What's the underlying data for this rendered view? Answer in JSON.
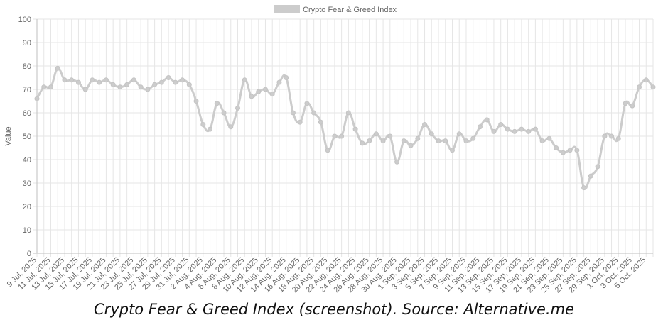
{
  "chart_data": {
    "type": "line",
    "title": "",
    "xlabel": "",
    "ylabel": "Value",
    "ylim": [
      0,
      100
    ],
    "yticks": [
      0,
      10,
      20,
      30,
      40,
      50,
      60,
      70,
      80,
      90,
      100
    ],
    "grid": true,
    "legend": "top-center",
    "x_tick_labels": [
      "9 Jul, 2025",
      "11 Jul, 2025",
      "13 Jul, 2025",
      "15 Jul, 2025",
      "17 Jul, 2025",
      "19 Jul, 2025",
      "21 Jul, 2025",
      "23 Jul, 2025",
      "25 Jul, 2025",
      "27 Jul, 2025",
      "29 Jul, 2025",
      "31 Jul, 2025",
      "2 Aug, 2025",
      "4 Aug, 2025",
      "6 Aug, 2025",
      "8 Aug, 2025",
      "10 Aug, 2025",
      "12 Aug, 2025",
      "14 Aug, 2025",
      "16 Aug, 2025",
      "18 Aug, 2025",
      "20 Aug, 2025",
      "22 Aug, 2025",
      "24 Aug, 2025",
      "26 Aug, 2025",
      "28 Aug, 2025",
      "30 Aug, 2025",
      "1 Sep, 2025",
      "3 Sep, 2025",
      "5 Sep, 2025",
      "7 Sep, 2025",
      "9 Sep, 2025",
      "11 Sep, 2025",
      "13 Sep, 2025",
      "15 Sep, 2025",
      "17 Sep, 2025",
      "19 Sep, 2025",
      "21 Sep, 2025",
      "23 Sep, 2025",
      "25 Sep, 2025",
      "27 Sep, 2025",
      "29 Sep, 2025",
      "1 Oct, 2025",
      "3 Oct, 2025",
      "5 Oct, 2025"
    ],
    "series": [
      {
        "name": "Crypto Fear & Greed Index",
        "color": "#cccccc",
        "x_start": "2025-07-09",
        "values": [
          66,
          71,
          71,
          79,
          74,
          74,
          73,
          70,
          74,
          73,
          74,
          72,
          71,
          72,
          74,
          71,
          70,
          72,
          73,
          75,
          73,
          74,
          72,
          65,
          55,
          53,
          64,
          60,
          54,
          62,
          74,
          67,
          69,
          70,
          68,
          73,
          75,
          60,
          56,
          64,
          60,
          56,
          44,
          50,
          50,
          60,
          53,
          47,
          48,
          51,
          48,
          50,
          39,
          48,
          46,
          49,
          55,
          51,
          48,
          48,
          44,
          51,
          48,
          49,
          54,
          57,
          52,
          55,
          53,
          52,
          53,
          52,
          53,
          48,
          49,
          45,
          43,
          44,
          44,
          28,
          33,
          37,
          50,
          50,
          49,
          64,
          63,
          71,
          74,
          71
        ]
      }
    ]
  },
  "caption": "Crypto Fear & Greed Index (screenshot). Source: Alternative.me"
}
